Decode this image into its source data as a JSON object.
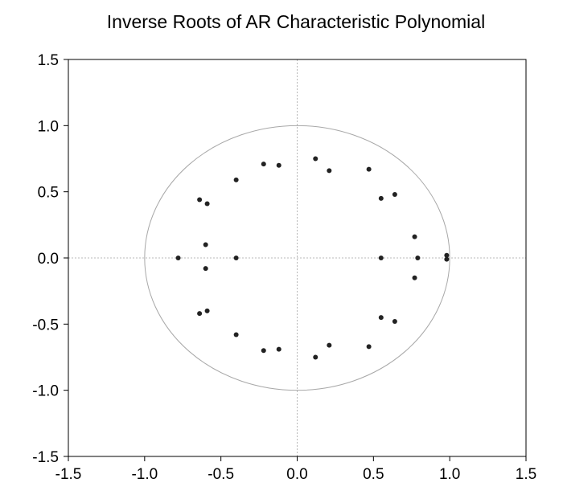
{
  "chart_data": {
    "type": "scatter",
    "title": "Inverse Roots of AR Characteristic Polynomial",
    "xlim": [
      -1.5,
      1.5
    ],
    "ylim": [
      -1.5,
      1.5
    ],
    "x_ticks": [
      "-1.5",
      "-1.0",
      "-0.5",
      "0.0",
      "0.5",
      "1.0",
      "1.5"
    ],
    "y_ticks": [
      "1.5",
      "1.0",
      "0.5",
      "0.0",
      "-0.5",
      "-1.0",
      "-1.5"
    ],
    "unit_circle": true,
    "zero_lines": true,
    "grid": false,
    "points": [
      {
        "x": 0.12,
        "y": 0.75
      },
      {
        "x": 0.12,
        "y": -0.75
      },
      {
        "x": 0.21,
        "y": 0.66
      },
      {
        "x": 0.21,
        "y": -0.66
      },
      {
        "x": 0.47,
        "y": 0.67
      },
      {
        "x": 0.47,
        "y": -0.67
      },
      {
        "x": 0.55,
        "y": 0.45
      },
      {
        "x": 0.55,
        "y": -0.45
      },
      {
        "x": 0.64,
        "y": 0.48
      },
      {
        "x": 0.64,
        "y": -0.48
      },
      {
        "x": 0.77,
        "y": 0.16
      },
      {
        "x": 0.77,
        "y": -0.15
      },
      {
        "x": 0.55,
        "y": 0.0
      },
      {
        "x": 0.79,
        "y": 0.0
      },
      {
        "x": 0.98,
        "y": 0.02
      },
      {
        "x": 0.98,
        "y": -0.01
      },
      {
        "x": -0.12,
        "y": 0.7
      },
      {
        "x": -0.12,
        "y": -0.69
      },
      {
        "x": -0.22,
        "y": 0.71
      },
      {
        "x": -0.22,
        "y": -0.7
      },
      {
        "x": -0.4,
        "y": 0.59
      },
      {
        "x": -0.4,
        "y": -0.58
      },
      {
        "x": -0.4,
        "y": 0.0
      },
      {
        "x": -0.59,
        "y": 0.41
      },
      {
        "x": -0.59,
        "y": -0.4
      },
      {
        "x": -0.64,
        "y": 0.44
      },
      {
        "x": -0.64,
        "y": -0.42
      },
      {
        "x": -0.6,
        "y": 0.1
      },
      {
        "x": -0.6,
        "y": -0.08
      },
      {
        "x": -0.78,
        "y": 0.0
      }
    ],
    "colors": {
      "point": "#222222",
      "circle": "#a8a8a8",
      "zero_line": "#b8b8b8",
      "frame": "#000000"
    }
  }
}
